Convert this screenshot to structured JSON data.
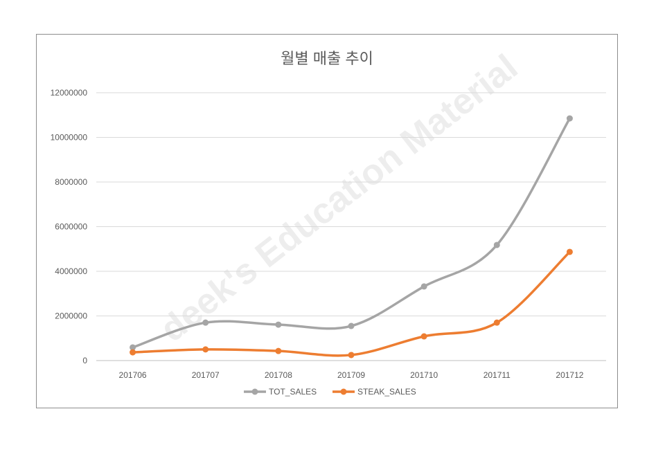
{
  "chart_data": {
    "type": "line",
    "title": "월별 매출 추이",
    "categories": [
      "201706",
      "201707",
      "201708",
      "201709",
      "201710",
      "201711",
      "201712"
    ],
    "series": [
      {
        "name": "TOT_SALES",
        "color": "#a5a5a5",
        "values": [
          590000,
          1700000,
          1610000,
          1550000,
          3320000,
          5180000,
          10850000
        ]
      },
      {
        "name": "STEAK_SALES",
        "color": "#ed7d31",
        "values": [
          370000,
          500000,
          430000,
          250000,
          1085000,
          1700000,
          4870000
        ]
      }
    ],
    "ylim": [
      0,
      12000000
    ],
    "yticks": [
      0,
      2000000,
      4000000,
      6000000,
      8000000,
      10000000,
      12000000
    ],
    "grid": true,
    "legend": "bottom",
    "smooth": true
  },
  "watermark": "deek's Education Material"
}
